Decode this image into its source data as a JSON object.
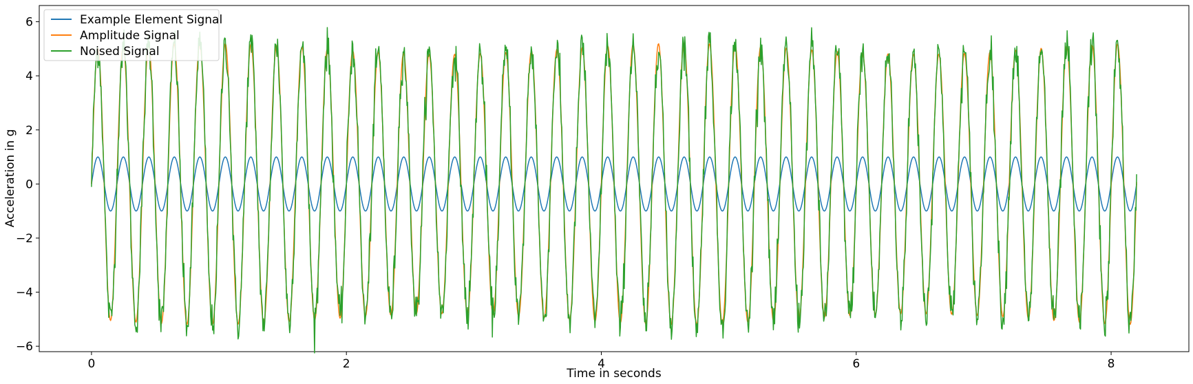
{
  "chart_data": {
    "type": "line",
    "title": "",
    "xlabel": "Time in seconds",
    "ylabel": "Acceleration in g",
    "xlim": [
      -0.41,
      8.61
    ],
    "ylim": [
      -6.2,
      6.6
    ],
    "x_ticks": [
      0,
      2,
      4,
      6,
      8
    ],
    "y_ticks": [
      -6,
      -4,
      -2,
      0,
      2,
      4,
      6
    ],
    "x_tick_labels": [
      "0",
      "2",
      "4",
      "6",
      "8"
    ],
    "y_tick_labels": [
      "−6",
      "−4",
      "−2",
      "0",
      "2",
      "4",
      "6"
    ],
    "grid": false,
    "legend_position": "top-left",
    "duration": 8.2,
    "frequency_hz": 5.0,
    "series": [
      {
        "name": "Example Element Signal",
        "color": "#1f77b4",
        "amplitude": 1.0,
        "noise": 0.0
      },
      {
        "name": "Amplitude Signal",
        "color": "#ff7f0e",
        "amplitude": 5.0,
        "noise": 0.0
      },
      {
        "name": "Noised Signal",
        "color": "#2ca02c",
        "amplitude": 5.0,
        "noise": 0.35
      }
    ]
  }
}
